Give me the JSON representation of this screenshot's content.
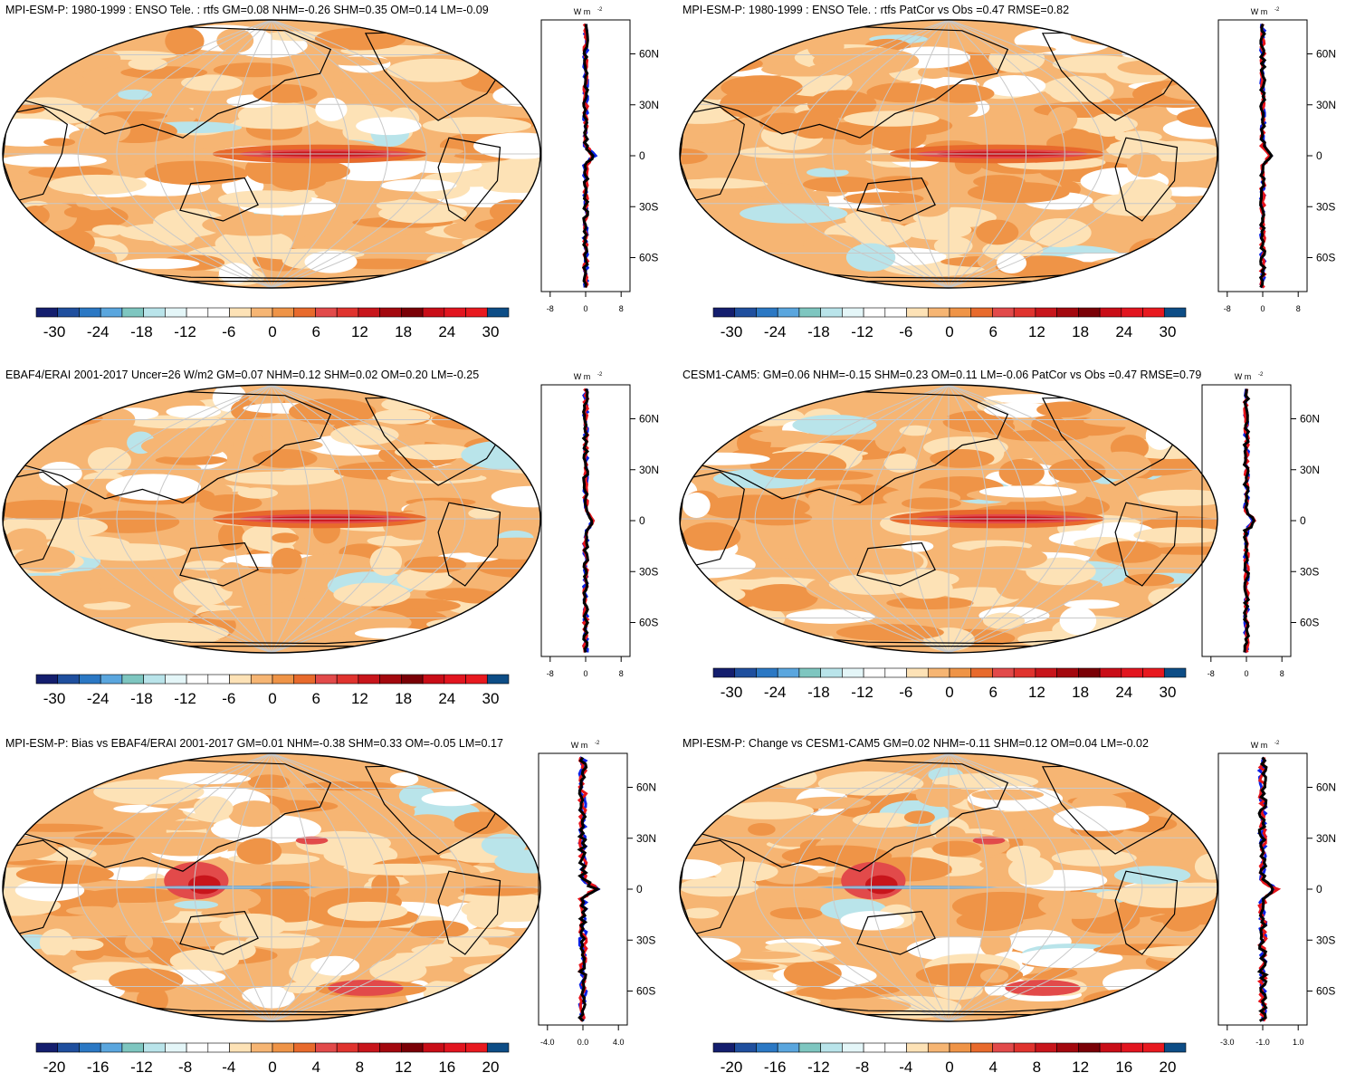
{
  "figure": {
    "colors": {
      "scale": [
        "#141e6e",
        "#1f4f9e",
        "#2b78c4",
        "#5aa6de",
        "#7ec6c0",
        "#b9e4ea",
        "#e4f6f8",
        "#ffffff",
        "#ffffff",
        "#fde2b6",
        "#f6b573",
        "#ef9447",
        "#e86a2c",
        "#e24a4a",
        "#e0332e",
        "#c8151b",
        "#a3080e",
        "#7a0006",
        "#c90d17",
        "#e2151f",
        "#e8191f",
        "#0d4d86"
      ],
      "coast": "#000000",
      "grid": "#c8c8c8",
      "zonal_blue": "#0a22e6",
      "zonal_red": "#e6131a",
      "zonal_black": "#000000"
    }
  },
  "panels": [
    {
      "id": "p1",
      "title": "MPI-ESM-P: 1980-1999 : ENSO Tele. : rtfs GM=0.08 NHM=-0.26 SHM=0.35 OM=0.14 LM=-0.09",
      "colorbar_labels": [
        "-30",
        "-24",
        "-18",
        "-12",
        "-6",
        "0",
        "6",
        "12",
        "18",
        "24",
        "30"
      ],
      "zonal": {
        "unit": "W m",
        "unit_sup": "-2",
        "lat_labels": [
          "60N",
          "30N",
          "0",
          "30S",
          "60S"
        ],
        "x_labels": [
          "-8",
          "0",
          "8"
        ]
      }
    },
    {
      "id": "p2",
      "title": "MPI-ESM-P: 1980-1999 : ENSO Tele. : rtfs PatCor vs Obs =0.47 RMSE=0.82",
      "colorbar_labels": [
        "-30",
        "-24",
        "-18",
        "-12",
        "-6",
        "0",
        "6",
        "12",
        "18",
        "24",
        "30"
      ],
      "zonal": {
        "unit": "W m",
        "unit_sup": "-2",
        "lat_labels": [
          "60N",
          "30N",
          "0",
          "30S",
          "60S"
        ],
        "x_labels": [
          "-8",
          "0",
          "8"
        ]
      }
    },
    {
      "id": "p3",
      "title": "EBAF4/ERAI 2001-2017 Uncer=26 W/m2 GM=0.07 NHM=0.12 SHM=0.02 OM=0.20 LM=-0.25",
      "colorbar_labels": [
        "-30",
        "-24",
        "-18",
        "-12",
        "-6",
        "0",
        "6",
        "12",
        "18",
        "24",
        "30"
      ],
      "zonal": {
        "unit": "W m",
        "unit_sup": "-2",
        "lat_labels": [
          "60N",
          "30N",
          "0",
          "30S",
          "60S"
        ],
        "x_labels": [
          "-8",
          "0",
          "8"
        ]
      }
    },
    {
      "id": "p4",
      "title": "CESM1-CAM5: GM=0.06 NHM=-0.15 SHM=0.23 OM=0.11 LM=-0.06 PatCor vs Obs =0.47 RMSE=0.79",
      "colorbar_labels": [
        "-30",
        "-24",
        "-18",
        "-12",
        "-6",
        "0",
        "6",
        "12",
        "18",
        "24",
        "30"
      ],
      "zonal": {
        "unit": "W m",
        "unit_sup": "-2",
        "lat_labels": [
          "60N",
          "30N",
          "0",
          "30S",
          "60S"
        ],
        "x_labels": [
          "-8",
          "0",
          "8"
        ]
      }
    },
    {
      "id": "p5",
      "title": "MPI-ESM-P: Bias vs EBAF4/ERAI 2001-2017 GM=0.01 NHM=-0.38 SHM=0.33 OM=-0.05 LM=0.17",
      "colorbar_labels": [
        "-20",
        "-16",
        "-12",
        "-8",
        "-4",
        "0",
        "4",
        "8",
        "12",
        "16",
        "20"
      ],
      "zonal": {
        "unit": "W m",
        "unit_sup": "-2",
        "lat_labels": [
          "60N",
          "30N",
          "0",
          "30S",
          "60S"
        ],
        "x_labels": [
          "-4.0",
          "0.0",
          "4.0"
        ]
      }
    },
    {
      "id": "p6",
      "title": "MPI-ESM-P: Change vs CESM1-CAM5 GM=0.02 NHM=-0.11 SHM=0.12 OM=0.04 LM=-0.02",
      "colorbar_labels": [
        "-20",
        "-16",
        "-12",
        "-8",
        "-4",
        "0",
        "4",
        "8",
        "12",
        "16",
        "20"
      ],
      "zonal": {
        "unit": "W m",
        "unit_sup": "-2",
        "lat_labels": [
          "60N",
          "30N",
          "0",
          "30S",
          "60S"
        ],
        "x_labels": [
          "-3.0",
          "-1.0",
          "1.0"
        ]
      }
    }
  ]
}
